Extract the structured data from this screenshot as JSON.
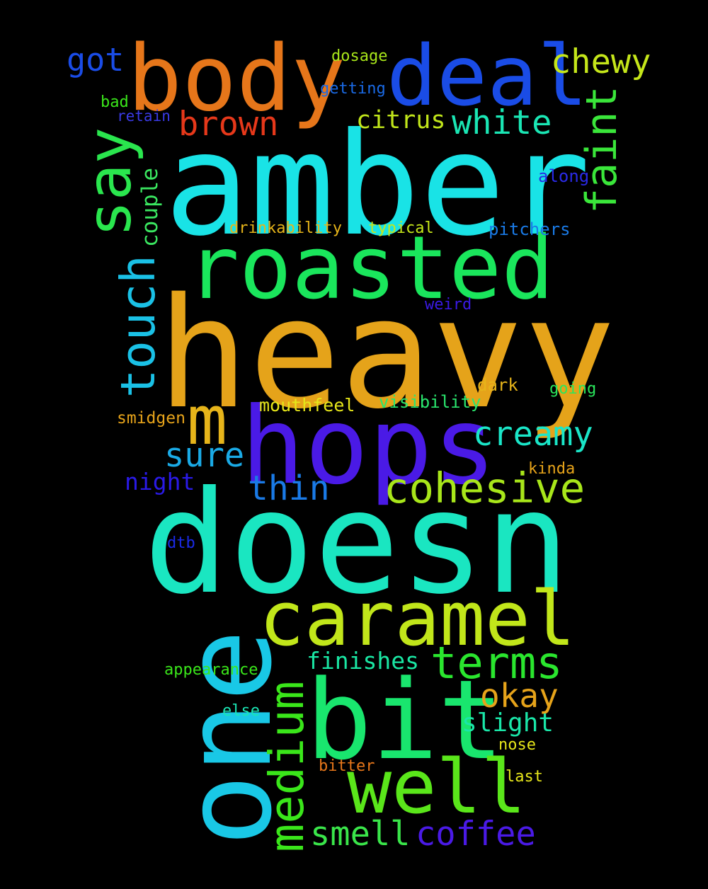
{
  "background": "#000000",
  "words": [
    {
      "text": "amber",
      "color": "#19e3e6"
    },
    {
      "text": "heavy",
      "color": "#e5a31a"
    },
    {
      "text": "doesn",
      "color": "#1ae6c1"
    },
    {
      "text": "one",
      "color": "#19c8e6"
    },
    {
      "text": "hops",
      "color": "#4a1ae6"
    },
    {
      "text": "roasted",
      "color": "#1ae65c"
    },
    {
      "text": "bit",
      "color": "#19e66e"
    },
    {
      "text": "body",
      "color": "#e6761a"
    },
    {
      "text": "deal",
      "color": "#1a4ce6"
    },
    {
      "text": "caramel",
      "color": "#c1e61a"
    },
    {
      "text": "well",
      "color": "#5ae61a"
    },
    {
      "text": "say",
      "color": "#2ae64e"
    },
    {
      "text": "touch",
      "color": "#1ac1e6"
    },
    {
      "text": "medium",
      "color": "#3ae61a"
    },
    {
      "text": "faint",
      "color": "#3ae63a"
    },
    {
      "text": "terms",
      "color": "#2ae62e"
    },
    {
      "text": "m",
      "color": "#e6b41a"
    },
    {
      "text": "cohesive",
      "color": "#a8e61a"
    },
    {
      "text": "creamy",
      "color": "#1ae6c8"
    },
    {
      "text": "brown",
      "color": "#e6381a"
    },
    {
      "text": "white",
      "color": "#1ae6b4"
    },
    {
      "text": "chewy",
      "color": "#c5e61a"
    },
    {
      "text": "sure",
      "color": "#1aaae6"
    },
    {
      "text": "thin",
      "color": "#1a7ae6"
    },
    {
      "text": "okay",
      "color": "#e6a31a"
    },
    {
      "text": "smell",
      "color": "#3ae64a"
    },
    {
      "text": "coffee",
      "color": "#4a1ae6"
    },
    {
      "text": "got",
      "color": "#1a4ce6"
    },
    {
      "text": "citrus",
      "color": "#c1e61a"
    },
    {
      "text": "couple",
      "color": "#3ae660"
    },
    {
      "text": "finishes",
      "color": "#1ae6a3"
    },
    {
      "text": "slight",
      "color": "#1ae6a8"
    },
    {
      "text": "night",
      "color": "#2a1ae6"
    },
    {
      "text": "drinkability",
      "color": "#e6b41a"
    },
    {
      "text": "typical",
      "color": "#c5e61a"
    },
    {
      "text": "pitchers",
      "color": "#1a7ae6"
    },
    {
      "text": "along",
      "color": "#2a2ae6"
    },
    {
      "text": "weird",
      "color": "#3a1ae6"
    },
    {
      "text": "dark",
      "color": "#e6b41a"
    },
    {
      "text": "going",
      "color": "#2ae65c"
    },
    {
      "text": "visibility",
      "color": "#2ae66e"
    },
    {
      "text": "mouthfeel",
      "color": "#e6e61a"
    },
    {
      "text": "smidgen",
      "color": "#e6a31a"
    },
    {
      "text": "kinda",
      "color": "#e6a31a"
    },
    {
      "text": "dtb",
      "color": "#1a2ae6"
    },
    {
      "text": "appearance",
      "color": "#3ae61a"
    },
    {
      "text": "else",
      "color": "#1ae6b4"
    },
    {
      "text": "nose",
      "color": "#e6e61a"
    },
    {
      "text": "bitter",
      "color": "#e6761a"
    },
    {
      "text": "last",
      "color": "#e6e61a"
    },
    {
      "text": "dosage",
      "color": "#a8e61a"
    },
    {
      "text": "getting",
      "color": "#1a6ae6"
    },
    {
      "text": "bad",
      "color": "#3ae61a"
    },
    {
      "text": "retain",
      "color": "#3a3ae6"
    }
  ]
}
